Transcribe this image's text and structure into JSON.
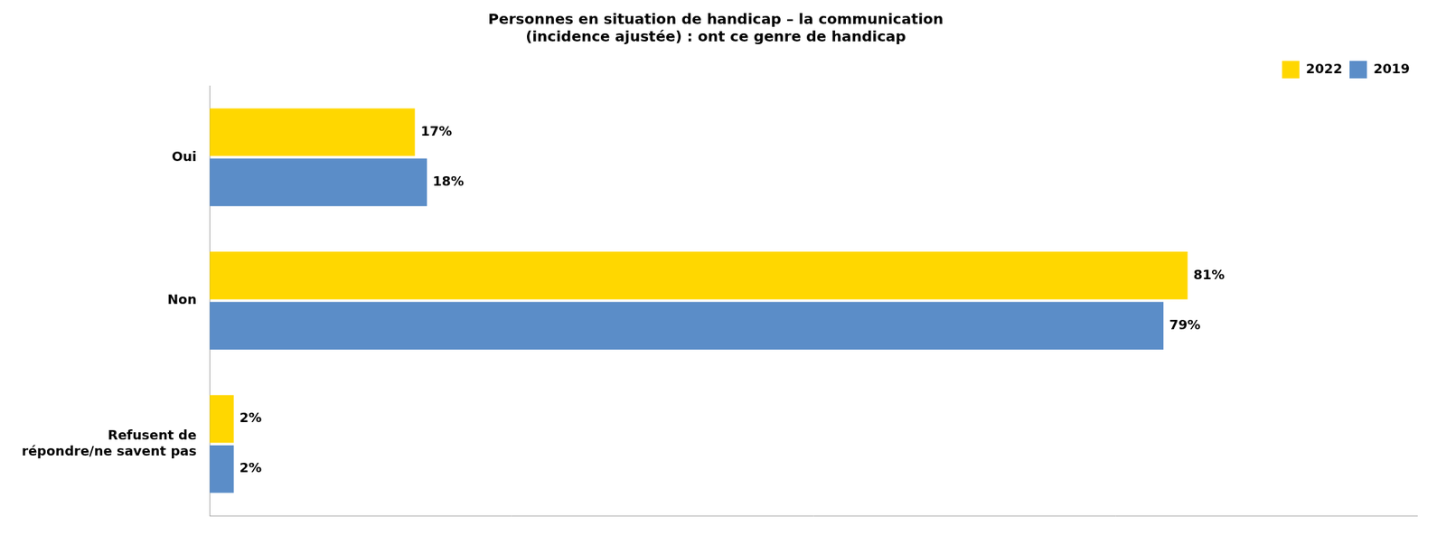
{
  "chart_data": {
    "type": "bar",
    "orientation": "horizontal",
    "title": "Personnes en situation de handicap – la communication\n(incidence ajustée) : ont ce genre de handicap",
    "categories": [
      "Oui",
      "Non",
      "Refusent de\nrépondre/ne savent pas"
    ],
    "series": [
      {
        "name": "2022",
        "color": "#FFD700",
        "values": [
          17,
          81,
          2
        ],
        "value_labels": [
          "17%",
          "81%",
          "2%"
        ]
      },
      {
        "name": "2019",
        "color": "#5B8DC8",
        "values": [
          18,
          79,
          2
        ],
        "value_labels": [
          "18%",
          "79%",
          "2%"
        ]
      }
    ],
    "xlim": [
      0,
      100
    ],
    "data_labels": true,
    "tick_labels": "y",
    "grid": false,
    "legend": "upper right"
  }
}
